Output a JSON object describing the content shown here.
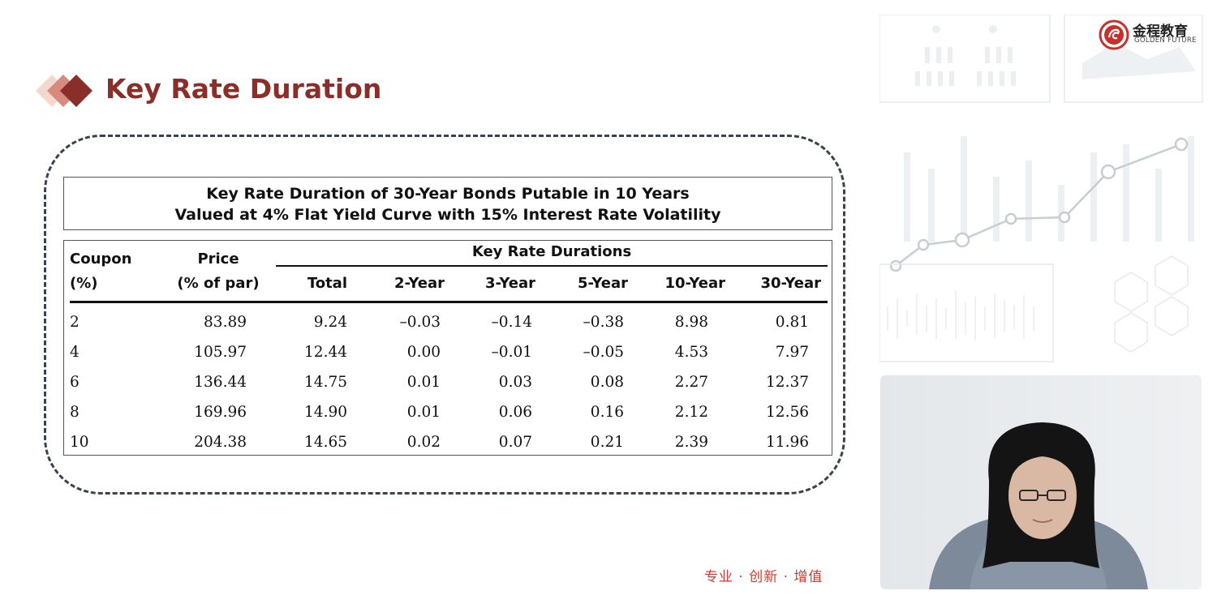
{
  "slide": {
    "title": "Key Rate Duration",
    "slogan": "专业 · 创新 · 增值",
    "logo": {
      "chinese_name": "金程教育",
      "english_name": "GOLDEN FUTURE"
    }
  },
  "table": {
    "caption_line1": "Key Rate Duration of 30-Year Bonds Putable in 10 Years",
    "caption_line2": "Valued at 4% Flat Yield Curve with 15% Interest Rate Volatility",
    "headers": {
      "coupon_line1": "Coupon",
      "coupon_line2": "(%)",
      "price_line1": "Price",
      "price_line2": "(% of par)",
      "group": "Key Rate Durations",
      "total": "Total",
      "y2": "2-Year",
      "y3": "3-Year",
      "y5": "5-Year",
      "y10": "10-Year",
      "y30": "30-Year"
    },
    "rows": [
      {
        "coupon": "2",
        "price": "83.89",
        "total": "9.24",
        "y2": "–0.03",
        "y3": "–0.14",
        "y5": "–0.38",
        "y10": "8.98",
        "y30": "0.81"
      },
      {
        "coupon": "4",
        "price": "105.97",
        "total": "12.44",
        "y2": "0.00",
        "y3": "–0.01",
        "y5": "–0.05",
        "y10": "4.53",
        "y30": "7.97"
      },
      {
        "coupon": "6",
        "price": "136.44",
        "total": "14.75",
        "y2": "0.01",
        "y3": "0.03",
        "y5": "0.08",
        "y10": "2.27",
        "y30": "12.37"
      },
      {
        "coupon": "8",
        "price": "169.96",
        "total": "14.90",
        "y2": "0.01",
        "y3": "0.06",
        "y5": "0.16",
        "y10": "2.12",
        "y30": "12.56"
      },
      {
        "coupon": "10",
        "price": "204.38",
        "total": "14.65",
        "y2": "0.02",
        "y3": "0.07",
        "y5": "0.21",
        "y10": "2.39",
        "y30": "11.96"
      }
    ]
  },
  "colors": {
    "title": "#8a2e29",
    "slogan": "#d43a32",
    "frame": "#3a4250"
  }
}
